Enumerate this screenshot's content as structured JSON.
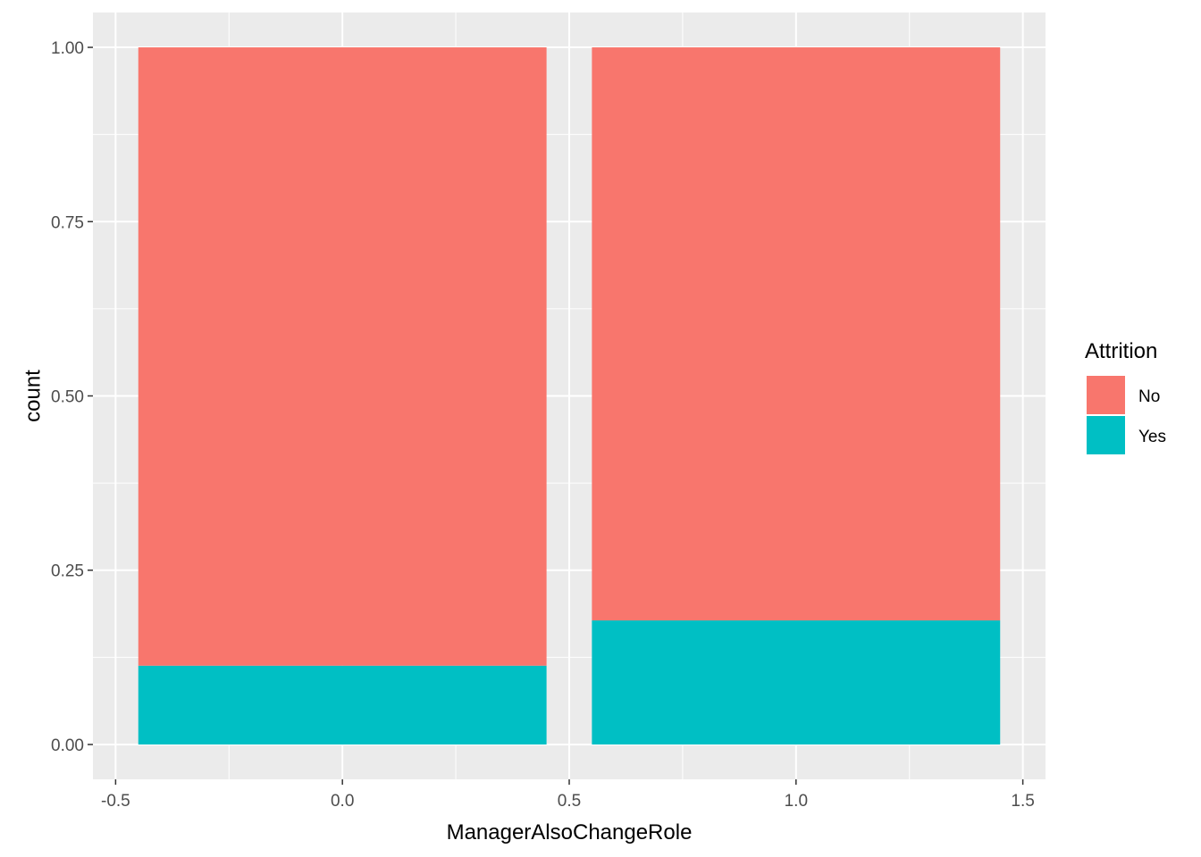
{
  "chart_data": {
    "type": "bar",
    "stacked": true,
    "x_positions": [
      0,
      1
    ],
    "bar_width": 0.9,
    "series": [
      {
        "name": "No",
        "color": "#F8766D",
        "values": [
          0.887,
          0.822
        ]
      },
      {
        "name": "Yes",
        "color": "#00BFC4",
        "values": [
          0.113,
          0.178
        ]
      }
    ],
    "xlabel": "ManagerAlsoChangeRole",
    "ylabel": "count",
    "xlim": [
      -0.55,
      1.55
    ],
    "ylim": [
      -0.05,
      1.05
    ],
    "x_ticks": [
      -0.5,
      0.0,
      0.5,
      1.0,
      1.5
    ],
    "x_tick_labels": [
      "-0.5",
      "0.0",
      "0.5",
      "1.0",
      "1.5"
    ],
    "y_ticks": [
      0.0,
      0.25,
      0.5,
      0.75,
      1.0
    ],
    "y_tick_labels": [
      "0.00",
      "0.25",
      "0.50",
      "0.75",
      "1.00"
    ],
    "grid": true,
    "panel_background": "#EBEBEB",
    "legend": {
      "title": "Attrition",
      "placement": "right",
      "entries": [
        {
          "label": "No",
          "color": "#F8766D"
        },
        {
          "label": "Yes",
          "color": "#00BFC4"
        }
      ]
    }
  }
}
